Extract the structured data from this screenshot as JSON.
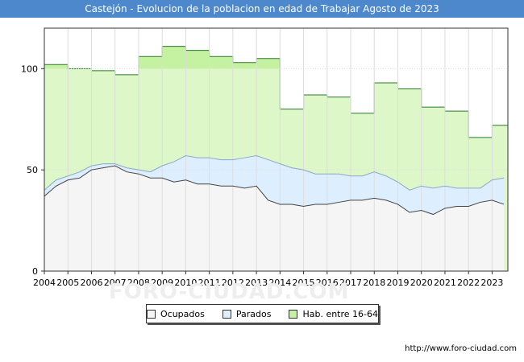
{
  "title": "Castejón - Evolucion de la poblacion en edad de Trabajar Agosto de 2023",
  "source": "http://www.foro-ciudad.com",
  "watermark": "FORO-CIUDAD.COM",
  "colors": {
    "title_bg": "#4d88cc",
    "ocupados_fill": "#f5f5f5",
    "parados_fill": "#ddeeff",
    "hab_fill": "#ddf7c8",
    "hab_fill_strong": "#c4f2a0",
    "ocupados_line": "#444444",
    "parados_line": "#8aa8cc",
    "hab_line": "#2a7a2a",
    "grid": "#dddddd"
  },
  "chart_data": {
    "type": "area",
    "xlim": [
      2004,
      2023.67
    ],
    "ylim": [
      0,
      120
    ],
    "x_ticks": [
      "2004",
      "2005",
      "2006",
      "2007",
      "2008",
      "2009",
      "2010",
      "2011",
      "2012",
      "2013",
      "2014",
      "2015",
      "2016",
      "2017",
      "2018",
      "2019",
      "2020",
      "2021",
      "2022",
      "2023"
    ],
    "y_ticks": [
      "0",
      "50",
      "100"
    ],
    "legend": [
      {
        "label": "Ocupados",
        "color": "#f5f5f5"
      },
      {
        "label": "Parados",
        "color": "#ddeeff"
      },
      {
        "label": "Hab. entre 16-64",
        "color": "#c4f2a0"
      }
    ],
    "series": [
      {
        "name": "Hab. entre 16-64",
        "x": [
          2004,
          2005,
          2006,
          2007,
          2008,
          2009,
          2010,
          2011,
          2012,
          2013,
          2014,
          2015,
          2016,
          2017,
          2018,
          2019,
          2020,
          2021,
          2022,
          2023
        ],
        "values": [
          102,
          100,
          99,
          97,
          106,
          111,
          109,
          106,
          103,
          105,
          80,
          87,
          86,
          78,
          93,
          90,
          81,
          79,
          66,
          72
        ]
      },
      {
        "name": "Parados",
        "x": [
          2004,
          2004.5,
          2005,
          2005.5,
          2006,
          2006.5,
          2007,
          2007.5,
          2008,
          2008.5,
          2009,
          2009.5,
          2010,
          2010.5,
          2011,
          2011.5,
          2012,
          2012.5,
          2013,
          2013.5,
          2014,
          2014.5,
          2015,
          2015.5,
          2016,
          2016.5,
          2017,
          2017.5,
          2018,
          2018.5,
          2019,
          2019.5,
          2020,
          2020.5,
          2021,
          2021.5,
          2022,
          2022.5,
          2023,
          2023.5
        ],
        "values": [
          40,
          45,
          47,
          49,
          52,
          53,
          53,
          51,
          50,
          49,
          52,
          54,
          57,
          56,
          56,
          55,
          55,
          56,
          57,
          55,
          53,
          51,
          50,
          48,
          48,
          48,
          47,
          47,
          49,
          47,
          44,
          40,
          42,
          41,
          42,
          41,
          41,
          41,
          45,
          46
        ]
      },
      {
        "name": "Ocupados",
        "x": [
          2004,
          2004.5,
          2005,
          2005.5,
          2006,
          2006.5,
          2007,
          2007.5,
          2008,
          2008.5,
          2009,
          2009.5,
          2010,
          2010.5,
          2011,
          2011.5,
          2012,
          2012.5,
          2013,
          2013.5,
          2014,
          2014.5,
          2015,
          2015.5,
          2016,
          2016.5,
          2017,
          2017.5,
          2018,
          2018.5,
          2019,
          2019.5,
          2020,
          2020.5,
          2021,
          2021.5,
          2022,
          2022.5,
          2023,
          2023.5
        ],
        "values": [
          37,
          42,
          45,
          46,
          50,
          51,
          52,
          49,
          48,
          46,
          46,
          44,
          45,
          43,
          43,
          42,
          42,
          41,
          42,
          35,
          33,
          33,
          32,
          33,
          33,
          34,
          35,
          35,
          36,
          35,
          33,
          29,
          30,
          28,
          31,
          32,
          32,
          34,
          35,
          33
        ]
      }
    ]
  }
}
